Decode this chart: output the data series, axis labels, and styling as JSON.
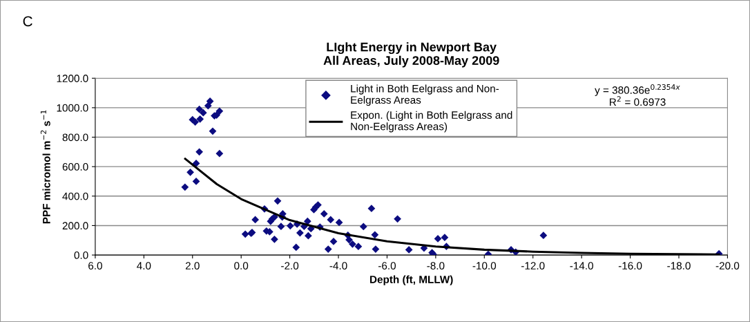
{
  "chart_data": {
    "type": "scatter",
    "title": "LIght Energy in Newport Bay\nAll Areas, July 2008-May 2009",
    "xlabel": "Depth (ft, MLLW)",
    "ylabel": "PPF micromol m$^{−2}$ s$^{−1}$",
    "annotations": [
      "C",
      "y = 380.36e$^{0.2354x}$",
      "R$^{2}$ = 0.6973"
    ],
    "xlim": [
      6,
      -20
    ],
    "xticks": [
      {
        "value": 6,
        "label": "6.0"
      },
      {
        "value": 4,
        "label": "4.0"
      },
      {
        "value": 2,
        "label": "2.0"
      },
      {
        "value": 0,
        "label": "0.0"
      },
      {
        "value": -2,
        "label": "-2.0"
      },
      {
        "value": -4,
        "label": "-4.0"
      },
      {
        "value": -6,
        "label": "-6.0"
      },
      {
        "value": -8,
        "label": "-8.0"
      },
      {
        "value": -10,
        "label": "-10.0"
      },
      {
        "value": -12,
        "label": "-12.0"
      },
      {
        "value": -14,
        "label": "-14.0"
      },
      {
        "value": -16,
        "label": "-16.0"
      },
      {
        "value": -18,
        "label": "-18.0"
      },
      {
        "value": -20,
        "label": "-20.0"
      }
    ],
    "ylim": [
      0,
      1200
    ],
    "yticks": [
      {
        "value": 0,
        "label": "0.0"
      },
      {
        "value": 200,
        "label": "200.0"
      },
      {
        "value": 400,
        "label": "400.0"
      },
      {
        "value": 600,
        "label": "600.0"
      },
      {
        "value": 800,
        "label": "800.0"
      },
      {
        "value": 1000,
        "label": "1000.0"
      },
      {
        "value": 1200,
        "label": "1200.0"
      }
    ],
    "grid": "y",
    "legend": "top",
    "series": [
      {
        "name": "Light in Both Eelgrass and Non-\nEelgrass Areas",
        "marker": "diamond",
        "color": "#0c0c80",
        "x": [
          2.31,
          2.09,
          1.85,
          1.85,
          1.72,
          2.0,
          1.89,
          1.69,
          1.72,
          1.56,
          1.36,
          1.28,
          1.17,
          1.1,
          1.01,
          0.89,
          0.89,
          -0.17,
          -0.41,
          -0.45,
          -0.58,
          -0.96,
          -1.04,
          -1.17,
          -1.37,
          -1.21,
          -1.28,
          -1.37,
          -1.5,
          -1.64,
          -1.71,
          -1.69,
          -2.02,
          -2.26,
          -2.3,
          -2.42,
          -2.59,
          -2.73,
          -2.76,
          -2.87,
          -2.99,
          -3.06,
          -3.16,
          -3.24,
          -3.41,
          -3.58,
          -3.68,
          -3.8,
          -4.03,
          -4.39,
          -4.44,
          -4.58,
          -4.82,
          -5.03,
          -5.36,
          -5.5,
          -5.53,
          -6.43,
          -6.9,
          -7.52,
          -7.85,
          -7.9,
          -8.09,
          -8.37,
          -8.44,
          -10.16,
          -11.1,
          -11.29,
          -12.43,
          -19.65
        ],
        "values": [
          461,
          562,
          500,
          622,
          700,
          919,
          903,
          923,
          989,
          966,
          1013,
          1044,
          841,
          945,
          950,
          977,
          689,
          142,
          147,
          153,
          240,
          313,
          163,
          158,
          107,
          229,
          245,
          258,
          367,
          194,
          280,
          258,
          198,
          52,
          210,
          150,
          194,
          229,
          131,
          179,
          308,
          324,
          340,
          190,
          280,
          40,
          240,
          92,
          221,
          134,
          103,
          74,
          58,
          193,
          316,
          137,
          40,
          245,
          36,
          47,
          16,
          5,
          111,
          119,
          58,
          5,
          36,
          20,
          133,
          9
        ]
      },
      {
        "name": "Expon. (Light in Both Eelgrass and\nNon-Eelgrass Areas)",
        "type": "line",
        "marker": "none",
        "line_style": "solid",
        "color": "#000000",
        "x": [
          2.3,
          1.0,
          0,
          -2,
          -4,
          -6,
          -8,
          -10,
          -12,
          -14,
          -16,
          -18,
          -19.65
        ],
        "values": [
          653,
          481,
          380,
          237,
          148,
          93,
          58,
          36,
          23,
          14,
          9,
          6,
          4
        ]
      }
    ]
  }
}
